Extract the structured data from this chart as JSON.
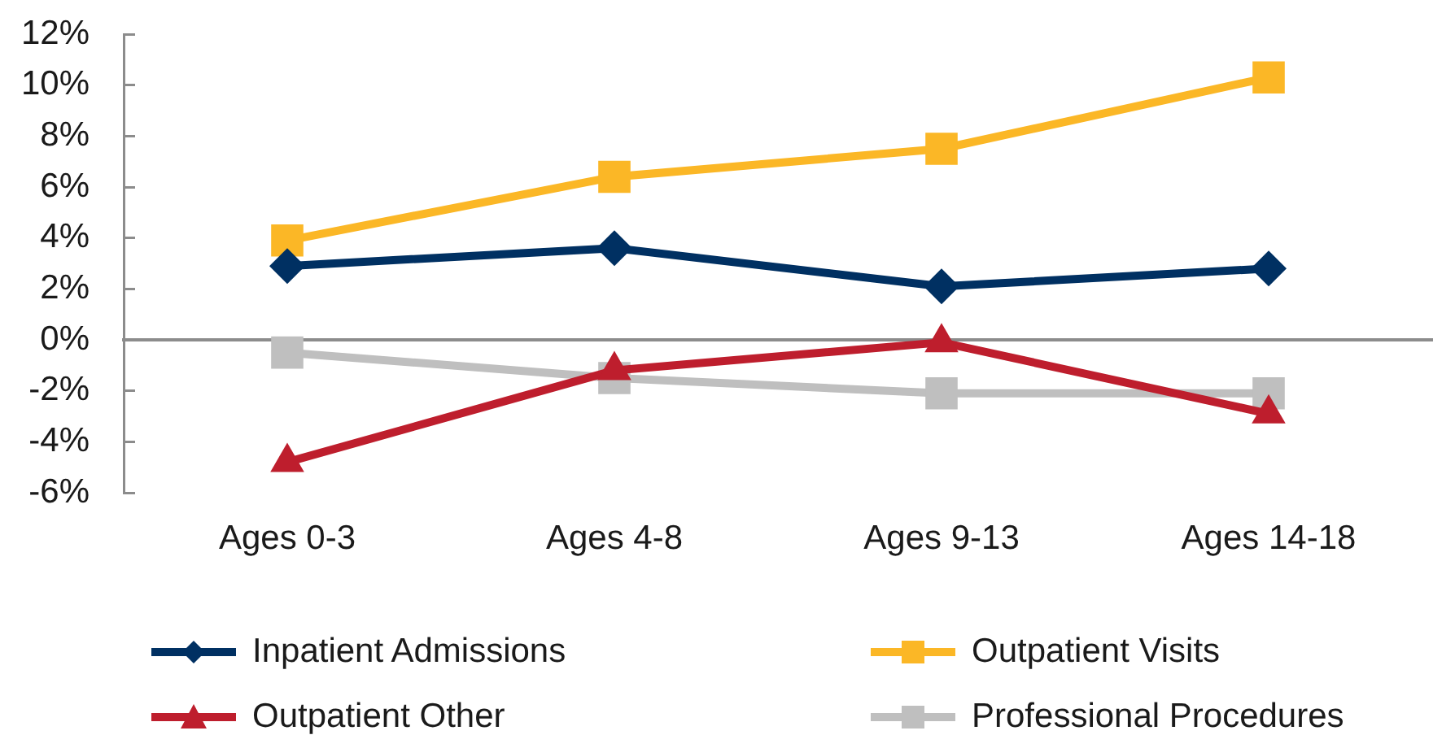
{
  "chart_data": {
    "type": "line",
    "categories": [
      "Ages 0-3",
      "Ages 4-8",
      "Ages 9-13",
      "Ages 14-18"
    ],
    "series": [
      {
        "name": "Inpatient Admissions",
        "color": "#003062",
        "marker": "diamond",
        "values": [
          2.9,
          3.6,
          2.1,
          2.8
        ]
      },
      {
        "name": "Outpatient Visits",
        "color": "#fbb726",
        "marker": "square",
        "values": [
          3.9,
          6.4,
          7.5,
          10.3
        ]
      },
      {
        "name": "Outpatient Other",
        "color": "#be1e2d",
        "marker": "triangle",
        "values": [
          -4.8,
          -1.2,
          -0.1,
          -2.9
        ]
      },
      {
        "name": "Professional Procedures",
        "color": "#bfbfbf",
        "marker": "square",
        "values": [
          -0.5,
          -1.5,
          -2.1,
          -2.1
        ]
      }
    ],
    "ylim": [
      -6,
      12
    ],
    "yticks": [
      {
        "value": -6,
        "label": "-6%"
      },
      {
        "value": -4,
        "label": "-4%"
      },
      {
        "value": -2,
        "label": "-2%"
      },
      {
        "value": 0,
        "label": "0%"
      },
      {
        "value": 2,
        "label": "2%"
      },
      {
        "value": 4,
        "label": "4%"
      },
      {
        "value": 6,
        "label": "6%"
      },
      {
        "value": 8,
        "label": "8%"
      },
      {
        "value": 10,
        "label": "10%"
      },
      {
        "value": 12,
        "label": "12%"
      }
    ],
    "legend": "bottom"
  }
}
